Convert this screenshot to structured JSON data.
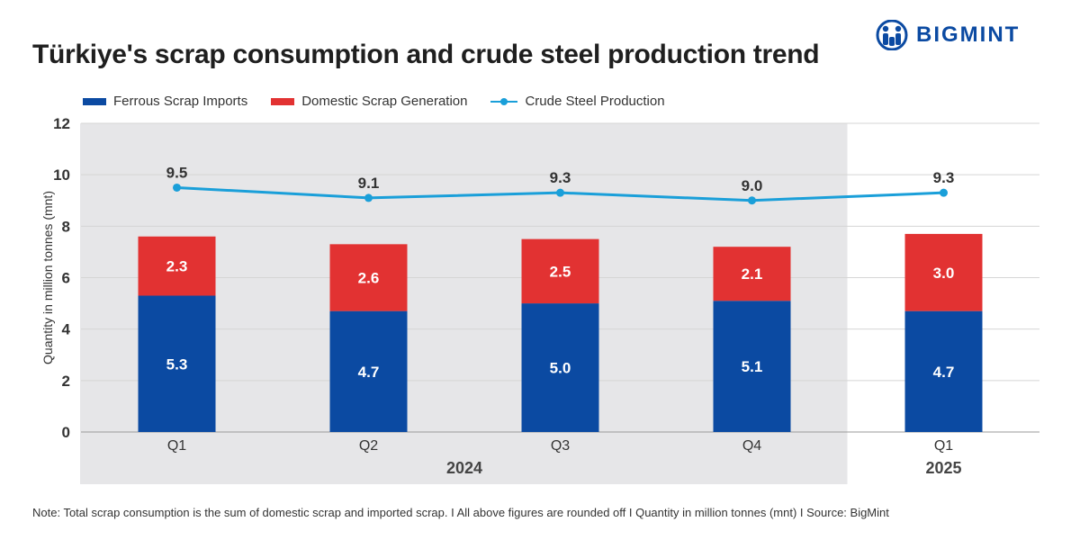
{
  "title": "Türkiye's scrap consumption and crude steel production trend",
  "logo": {
    "text": "BIGMINT"
  },
  "colors": {
    "imports": "#0b4aa2",
    "domestic": "#e23232",
    "production": "#1a9fd9",
    "shade": "#e6e6e8",
    "logo": "#0b4aa2"
  },
  "chart_data": {
    "type": "bar",
    "stacked": true,
    "categories": [
      "Q1",
      "Q2",
      "Q3",
      "Q4",
      "Q1"
    ],
    "groups": [
      {
        "label": "2024",
        "categories": [
          0,
          1,
          2,
          3
        ],
        "shaded": true
      },
      {
        "label": "2025",
        "categories": [
          4
        ],
        "shaded": false
      }
    ],
    "series": [
      {
        "name": "Ferrous Scrap Imports",
        "type": "bar",
        "values": [
          5.3,
          4.7,
          5.0,
          5.1,
          4.7
        ],
        "labels": [
          "5.3",
          "4.7",
          "5.0",
          "5.1",
          "4.7"
        ]
      },
      {
        "name": "Domestic Scrap Generation",
        "type": "bar",
        "values": [
          2.3,
          2.6,
          2.5,
          2.1,
          3.0
        ],
        "labels": [
          "2.3",
          "2.6",
          "2.5",
          "2.1",
          "3.0"
        ]
      },
      {
        "name": "Crude Steel Production",
        "type": "line",
        "values": [
          9.5,
          9.1,
          9.3,
          9.0,
          9.3
        ],
        "labels": [
          "9.5",
          "9.1",
          "9.3",
          "9.0",
          "9.3"
        ]
      }
    ],
    "ylabel": "Quantity in million tonnes (mnt)",
    "ylim": [
      0,
      12
    ],
    "yticks": [
      "0",
      "2",
      "4",
      "6",
      "8",
      "10",
      "12"
    ],
    "legend_position": "top-left",
    "grid": true
  },
  "note": "Note: Total scrap consumption is the sum of domestic scrap and imported scrap.  I  All above figures are rounded off  I  Quantity in million tonnes (mnt)  I  Source: BigMint"
}
